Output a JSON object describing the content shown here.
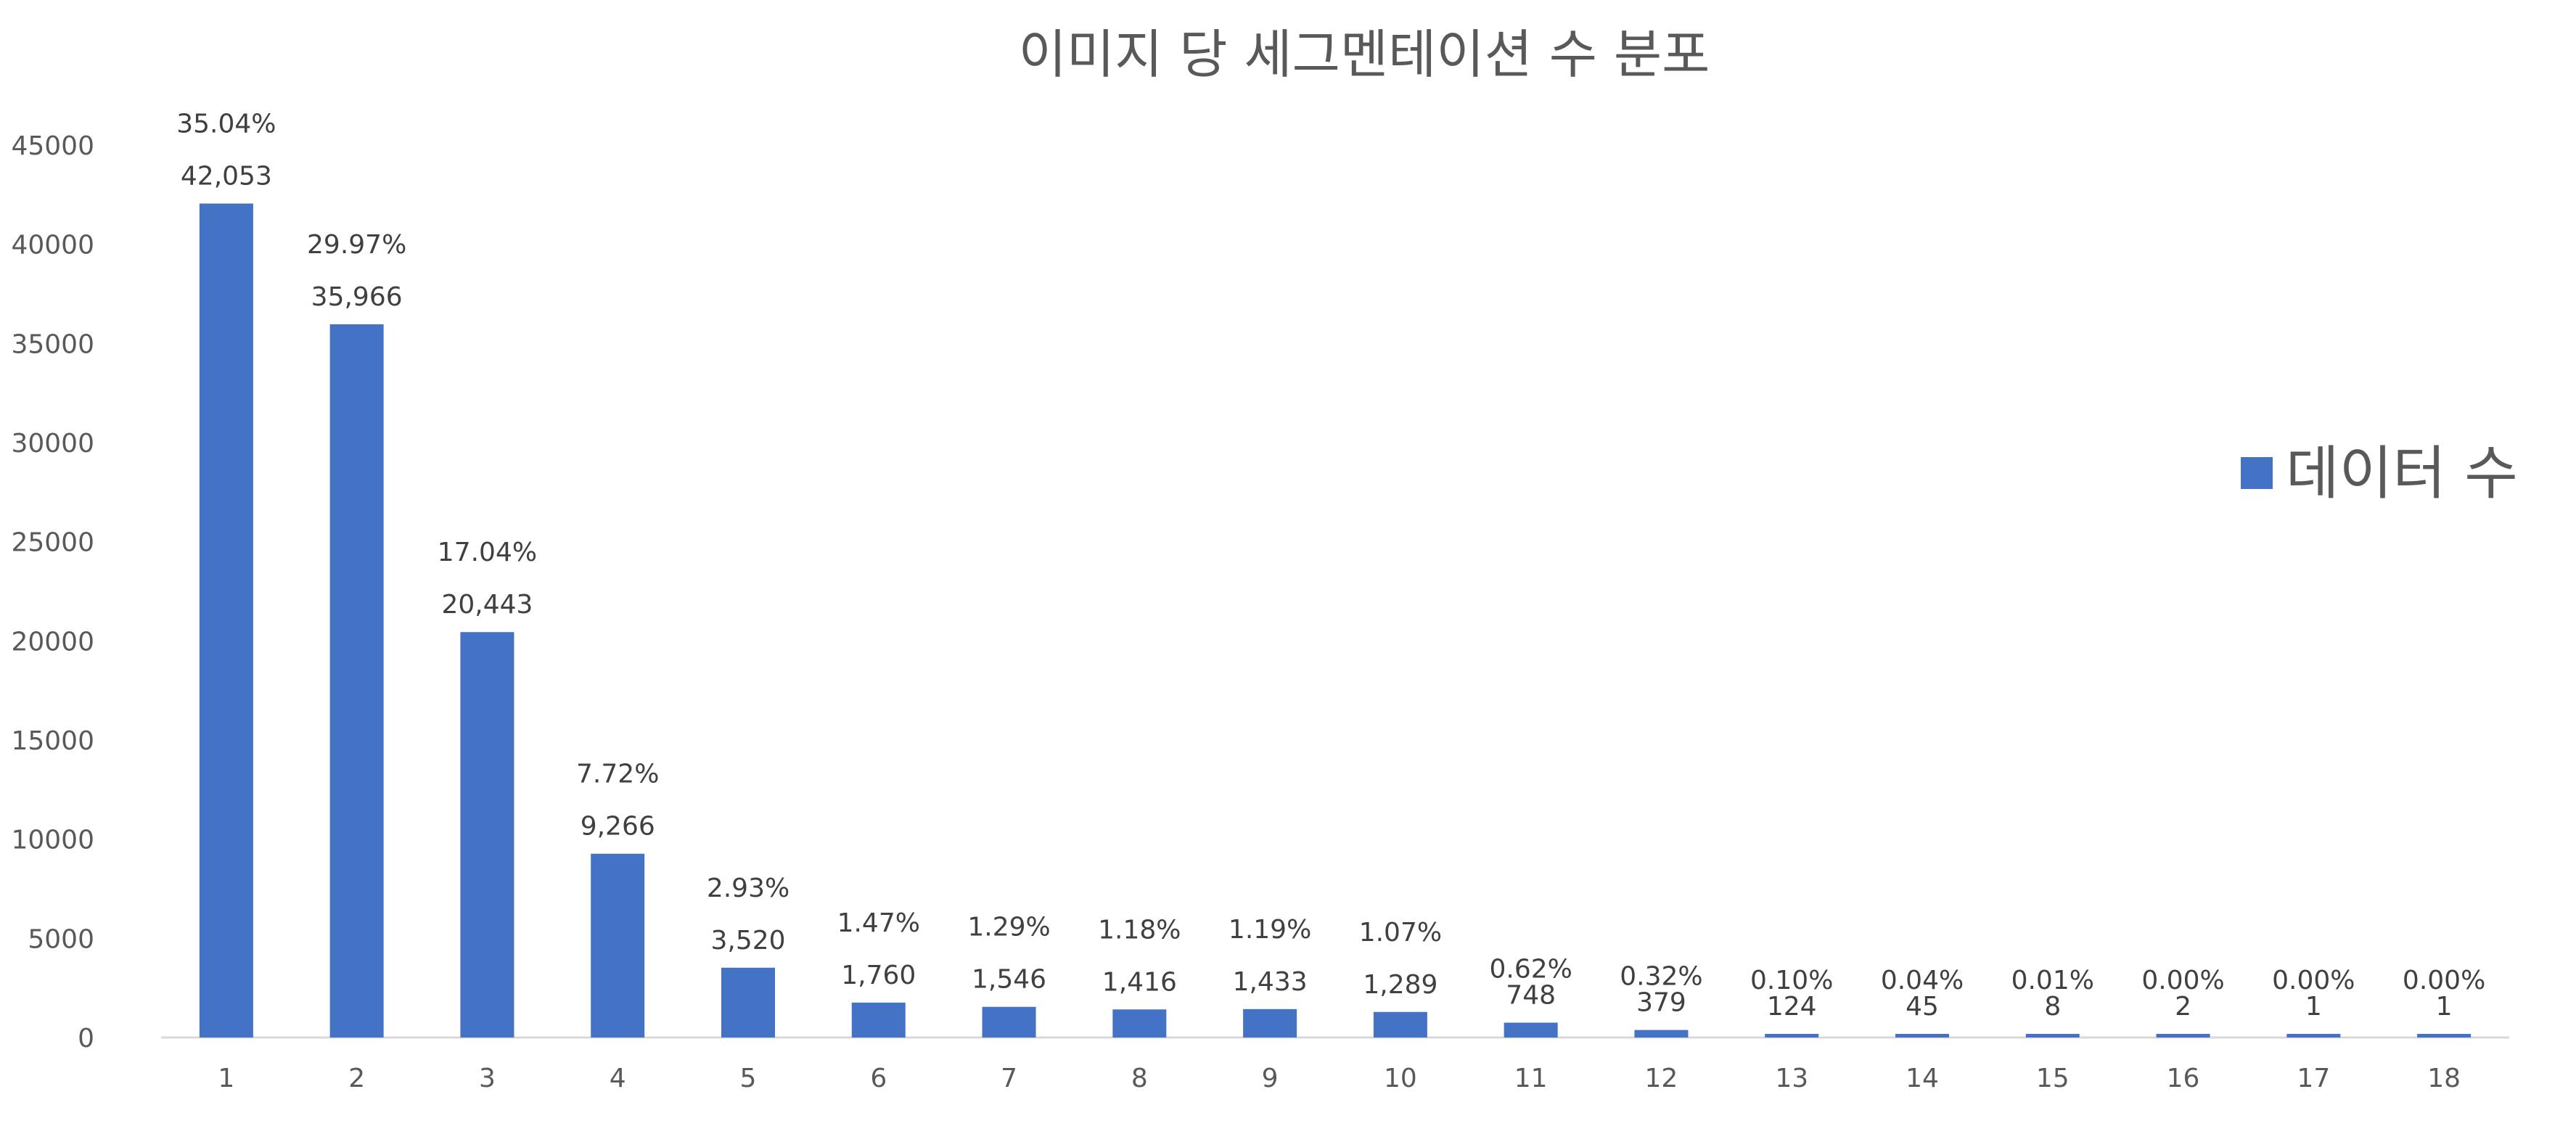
{
  "chart_data": {
    "type": "bar",
    "title": "이미지 당 세그멘테이션 수 분포",
    "categories": [
      "1",
      "2",
      "3",
      "4",
      "5",
      "6",
      "7",
      "8",
      "9",
      "10",
      "11",
      "12",
      "13",
      "14",
      "15",
      "16",
      "17",
      "18"
    ],
    "series": [
      {
        "name": "데이터 수",
        "values": [
          42053,
          35966,
          20443,
          9266,
          3520,
          1760,
          1546,
          1416,
          1433,
          1289,
          748,
          379,
          124,
          45,
          8,
          2,
          1,
          1
        ],
        "value_labels": [
          "42,053",
          "35,966",
          "20,443",
          "9,266",
          "3,520",
          "1,760",
          "1,546",
          "1,416",
          "1,433",
          "1,289",
          "748",
          "379",
          "124",
          "45",
          "8",
          "2",
          "1",
          "1"
        ],
        "percent_labels": [
          "35.04%",
          "29.97%",
          "17.04%",
          "7.72%",
          "2.93%",
          "1.47%",
          "1.29%",
          "1.18%",
          "1.19%",
          "1.07%",
          "0.62%",
          "0.32%",
          "0.10%",
          "0.04%",
          "0.01%",
          "0.00%",
          "0.00%",
          "0.00%"
        ]
      }
    ],
    "ylim": [
      0,
      45000
    ],
    "yticks": [
      "0",
      "5000",
      "10000",
      "15000",
      "20000",
      "25000",
      "30000",
      "35000",
      "40000",
      "45000"
    ],
    "grid": false,
    "legend": "right",
    "bar_color": "#4472C4"
  }
}
